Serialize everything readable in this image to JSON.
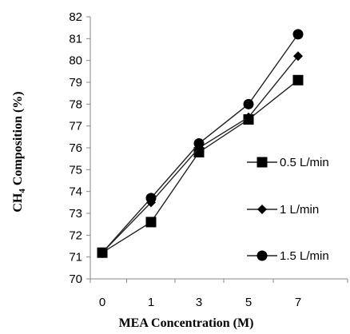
{
  "chart_data": {
    "type": "line",
    "title": "",
    "xlabel": "MEA Concentration (M)",
    "ylabel": "CH₄ Composition  (%)",
    "ylim": [
      70,
      82
    ],
    "y_ticks": [
      70,
      71,
      72,
      73,
      74,
      75,
      76,
      77,
      78,
      79,
      80,
      81,
      82
    ],
    "categories": [
      "0",
      "1",
      "3",
      "5",
      "7"
    ],
    "grid": false,
    "legend_position": "right",
    "series": [
      {
        "name": "0.5 L/min",
        "marker": "square",
        "values": [
          71.2,
          72.6,
          75.8,
          77.3,
          79.1
        ]
      },
      {
        "name": "1 L/min",
        "marker": "diamond",
        "values": [
          71.2,
          73.5,
          76.0,
          77.4,
          80.2
        ]
      },
      {
        "name": "1.5 L/min",
        "marker": "circle",
        "values": [
          71.2,
          73.7,
          76.2,
          78.0,
          81.2
        ]
      }
    ]
  }
}
